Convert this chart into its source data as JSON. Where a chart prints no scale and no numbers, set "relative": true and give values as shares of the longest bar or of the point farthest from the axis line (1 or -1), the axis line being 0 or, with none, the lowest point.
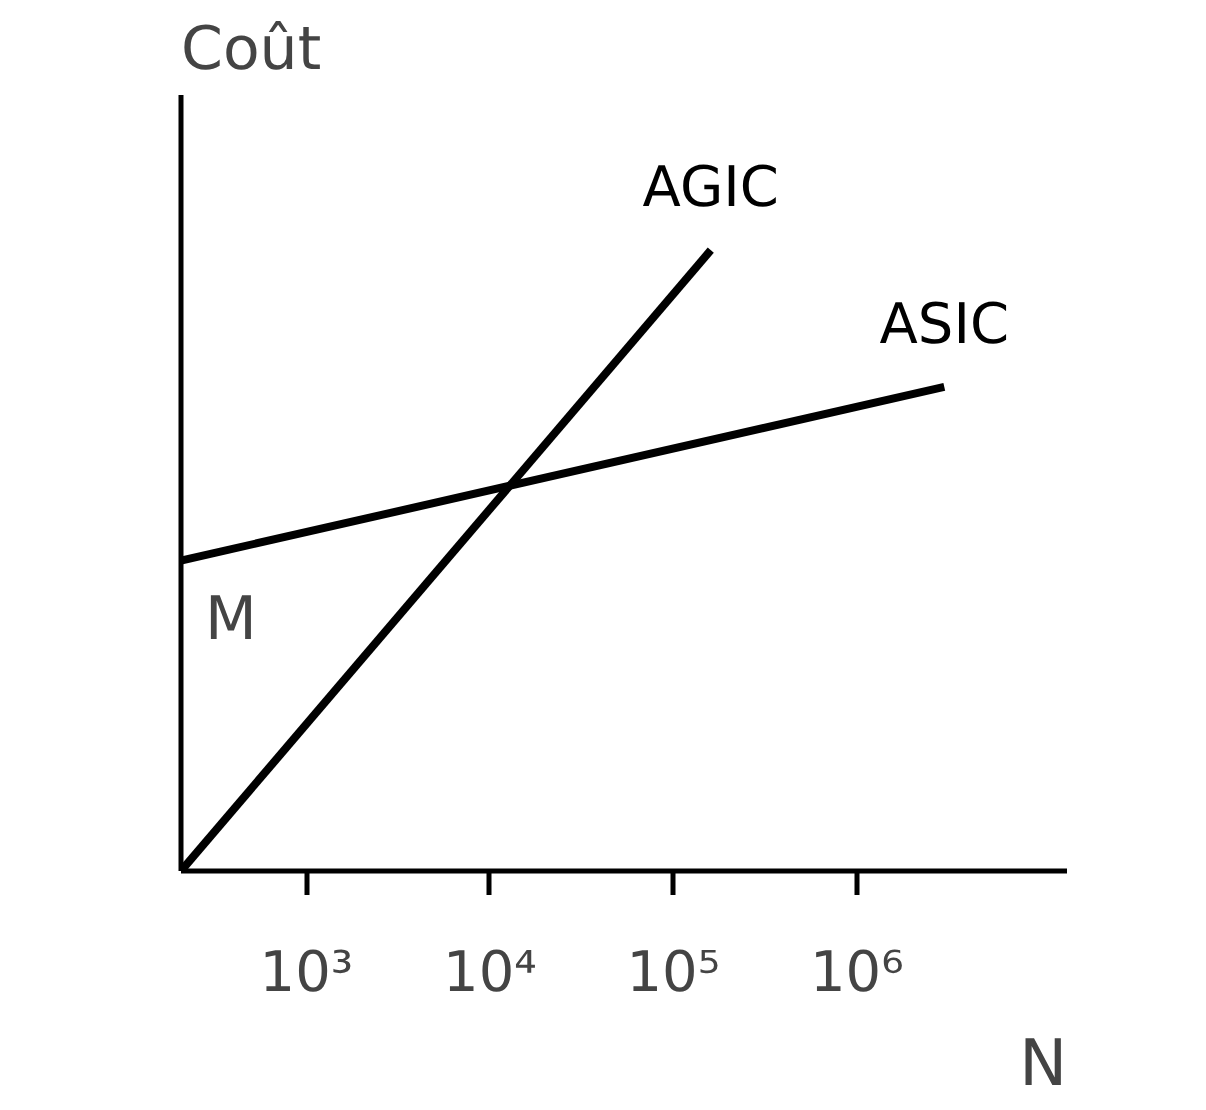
{
  "chart_data": {
    "type": "line",
    "relative": true,
    "log": "x",
    "xlabel": "N",
    "ylabel": "Coût",
    "xlim": [
      207,
      14000000
    ],
    "xticks": [
      {
        "value": 1000,
        "label": "10³"
      },
      {
        "value": 10000,
        "label": "10⁴"
      },
      {
        "value": 100000,
        "label": "10⁵"
      },
      {
        "value": 1000000,
        "label": "10⁶"
      }
    ],
    "tick_labels": "x",
    "grid": false,
    "series": [
      {
        "name": "AGIC",
        "color": "#000000",
        "x": [
          207,
          160000
        ],
        "values": [
          0,
          1
        ]
      },
      {
        "name": "ASIC",
        "color": "#000000",
        "x": [
          207,
          3000000
        ],
        "values": [
          0.5,
          0.78
        ]
      }
    ],
    "annotations": [
      {
        "text": "M",
        "y": 0.5
      }
    ]
  }
}
